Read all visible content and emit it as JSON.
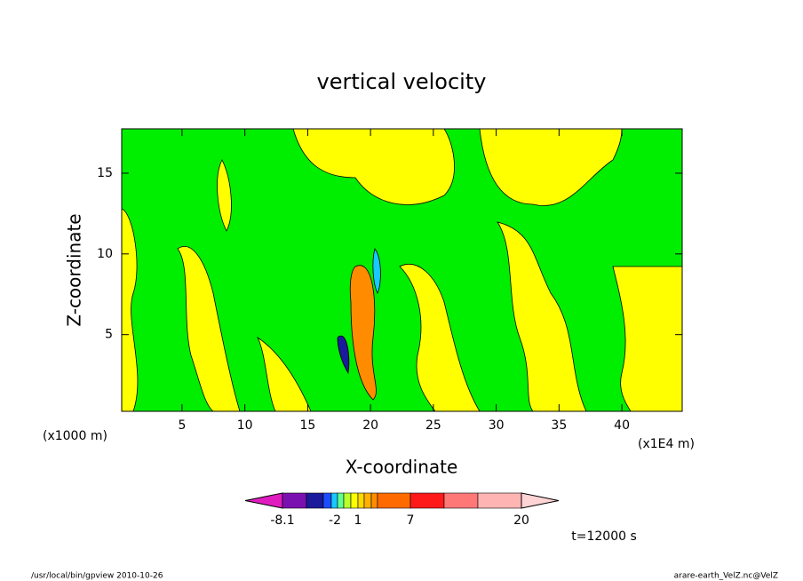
{
  "chart_data": {
    "type": "contour",
    "title": "vertical velocity",
    "xlabel": "X-coordinate",
    "ylabel": "Z-coordinate",
    "x_unit_left": "(x1000 m)",
    "x_unit_right": "(x1E4 m)",
    "xlim": [
      0.2,
      44.8
    ],
    "ylim": [
      0.25,
      17.75
    ],
    "xticks": [
      5,
      10,
      15,
      20,
      25,
      30,
      35,
      40
    ],
    "yticks": [
      5,
      10,
      15
    ],
    "colorbar": {
      "colors": [
        "#e01cc0",
        "#7a10b0",
        "#1a1a9a",
        "#1e4cff",
        "#18c8ff",
        "#60ff90",
        "#b8ff30",
        "#ffff00",
        "#ffd800",
        "#ffb000",
        "#ff8c00",
        "#ff6a00",
        "#ff1a1a",
        "#ff7878",
        "#ffb4b4",
        "#ffd4d4"
      ],
      "labels": [
        -8.1,
        -2,
        1,
        7,
        20
      ]
    },
    "time_label": "t=12000 s",
    "footer_left": "/usr/local/bin/gpview  2010-10-26",
    "footer_right": "arare-earth_VelZ.nc@VelZ"
  }
}
